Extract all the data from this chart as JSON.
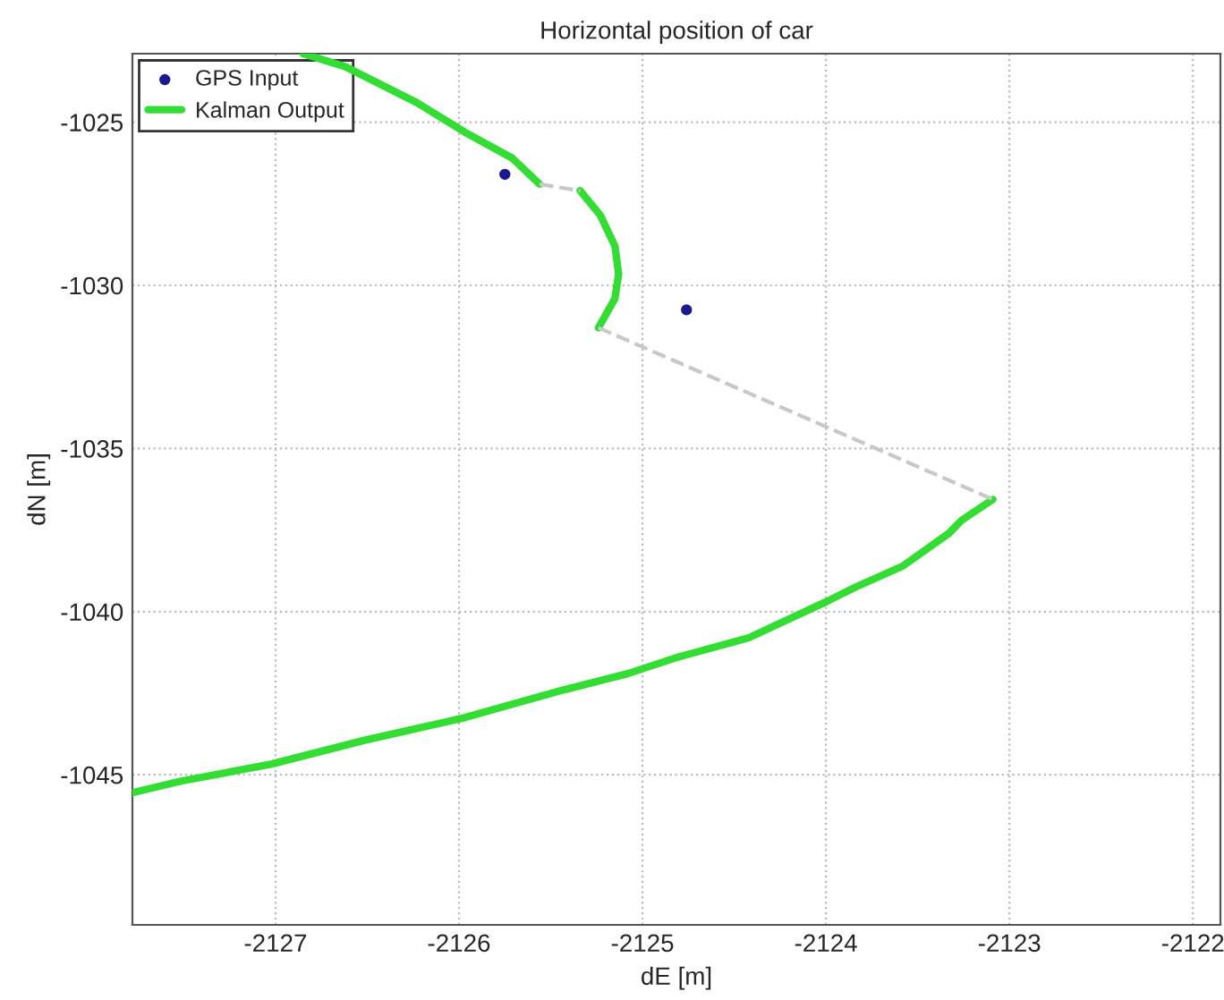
{
  "chart_data": {
    "type": "line",
    "title": "Horizontal position of car",
    "xlabel": "dE [m]",
    "ylabel": "dN [m]",
    "xlim": [
      -2127.78,
      -2121.85
    ],
    "ylim": [
      -1049.6,
      -1022.9
    ],
    "xticks": [
      -2127,
      -2126,
      -2125,
      -2124,
      -2123,
      -2122
    ],
    "yticks": [
      -1045,
      -1040,
      -1035,
      -1030,
      -1025
    ],
    "grid": true,
    "legend": "top left",
    "series": [
      {
        "name": "GPS Input",
        "type": "scatter",
        "marker": "circle",
        "color": "#1a1a8c",
        "x": [
          -2125.75,
          -2124.76
        ],
        "values": [
          -1026.6,
          -1030.75
        ]
      },
      {
        "name": "Kalman Output",
        "color": "#33dd33",
        "line_style": "solid",
        "x": [
          -2126.85,
          -2126.62,
          -2126.23,
          -2125.97,
          -2125.71,
          -2125.56,
          null,
          -2125.34,
          -2125.23,
          -2125.15,
          -2125.13,
          -2125.15,
          -2125.24,
          null,
          -2123.09,
          -2123.26,
          -2123.33,
          -2123.58,
          -2123.84,
          -2124.0,
          -2124.19,
          -2124.42,
          -2124.81,
          -2125.08,
          -2125.43,
          -2125.97,
          -2126.52,
          -2127.02,
          -2127.52,
          -2127.78
        ],
        "values": [
          -1022.9,
          -1023.3,
          -1024.4,
          -1025.3,
          -1026.1,
          -1026.9,
          null,
          -1027.1,
          -1027.85,
          -1028.8,
          -1029.65,
          -1030.4,
          -1031.3,
          null,
          -1036.56,
          -1037.2,
          -1037.6,
          -1038.6,
          -1039.25,
          -1039.7,
          -1040.2,
          -1040.8,
          -1041.4,
          -1041.9,
          -1042.4,
          -1043.25,
          -1043.95,
          -1044.67,
          -1045.2,
          -1045.55
        ]
      },
      {
        "color": "#c8c8c8",
        "line_style": "dashed",
        "x": [
          -2125.56,
          -2125.34,
          null,
          -2125.24,
          -2123.09
        ],
        "values": [
          -1026.9,
          -1027.1,
          null,
          -1031.3,
          -1036.56
        ]
      }
    ]
  }
}
